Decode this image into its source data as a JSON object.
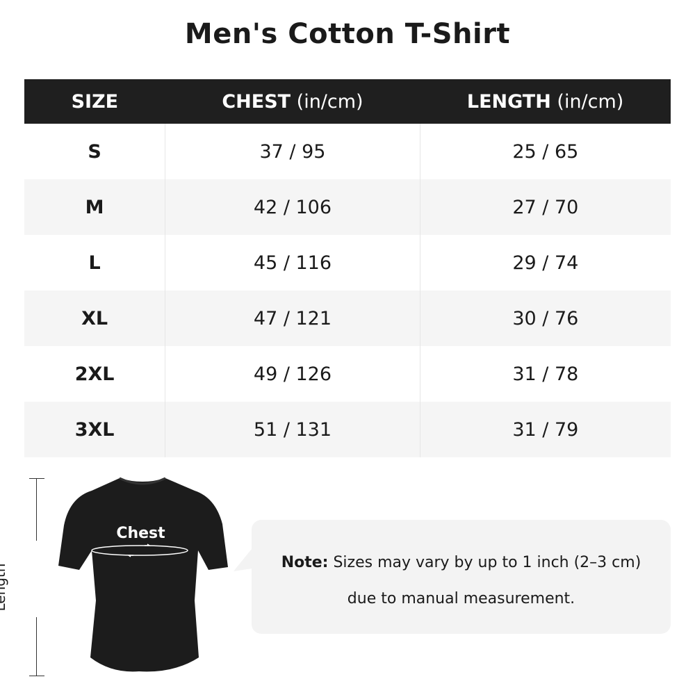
{
  "title": "Men's Cotton T-Shirt",
  "table": {
    "headers": [
      {
        "label": "SIZE",
        "unit": ""
      },
      {
        "label": "CHEST",
        "unit": " (in/cm)"
      },
      {
        "label": "LENGTH",
        "unit": " (in/cm)"
      }
    ],
    "rows": [
      [
        "S",
        "37 / 95",
        "25 / 65"
      ],
      [
        "M",
        "42 / 106",
        "27 / 70"
      ],
      [
        "L",
        "45 / 116",
        "29 / 74"
      ],
      [
        "XL",
        "47 / 121",
        "30 / 76"
      ],
      [
        "2XL",
        "49 / 126",
        "31 / 78"
      ],
      [
        "3XL",
        "51 / 131",
        "31 / 79"
      ]
    ]
  },
  "diagram": {
    "length_label": "Length",
    "chest_label": "Chest",
    "shirt_color": "#1c1c1c"
  },
  "note": {
    "prefix": "Note:",
    "line1": " Sizes may vary by up to 1 inch (2–3 cm)",
    "line2": "due to manual measurement."
  },
  "colors": {
    "header_bg": "#1f1f1f",
    "alt_row": "#f5f5f5",
    "bubble": "#f3f3f3"
  }
}
